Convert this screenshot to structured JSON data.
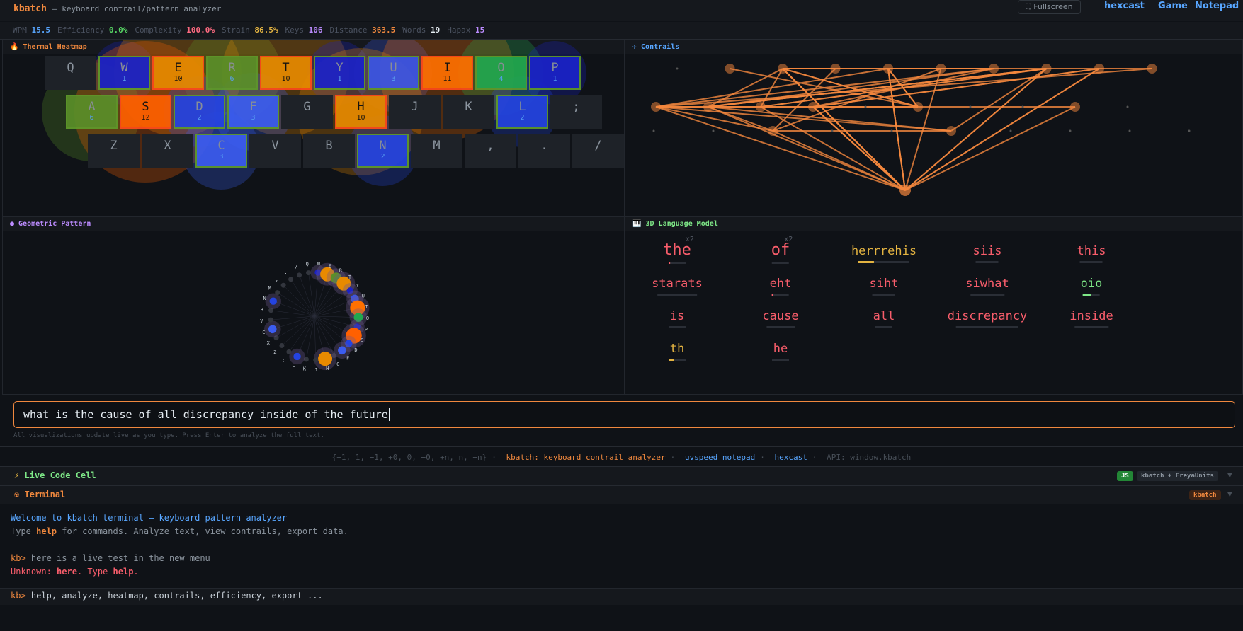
{
  "header": {
    "brand": "kbatch",
    "subtitle": "— keyboard contrail/pattern analyzer",
    "fullscreen": "Fullscreen",
    "links": [
      "hexcast",
      "Game",
      "Notepad"
    ]
  },
  "stats": [
    {
      "label": "WPM",
      "value": "15.5",
      "color": "#58a6ff"
    },
    {
      "label": "Efficiency",
      "value": "0.0%",
      "color": "#56d364"
    },
    {
      "label": "Complexity",
      "value": "100.0%",
      "color": "#ff6b81"
    },
    {
      "label": "Strain",
      "value": "86.5%",
      "color": "#e3b341"
    },
    {
      "label": "Keys",
      "value": "106",
      "color": "#bc8cff"
    },
    {
      "label": "Distance",
      "value": "363.5",
      "color": "#f0883e"
    },
    {
      "label": "Words",
      "value": "19",
      "color": "#e6edf3"
    },
    {
      "label": "Hapax",
      "value": "15",
      "color": "#bc8cff"
    }
  ],
  "panels": {
    "heatmap": "Thermal Heatmap",
    "contrails": "✈ Contrails",
    "geometric": "● Geometric Pattern",
    "language": "3D Language Model"
  },
  "keyboard": [
    [
      {
        "k": "Q"
      },
      {
        "k": "W",
        "c": "1",
        "col": "#1a22c8"
      },
      {
        "k": "E",
        "c": "10",
        "col": "#e88a00"
      },
      {
        "k": "R",
        "c": "6",
        "col": "#5a8f29"
      },
      {
        "k": "T",
        "c": "10",
        "col": "#e88a00"
      },
      {
        "k": "Y",
        "c": "1",
        "col": "#1a22c8"
      },
      {
        "k": "U",
        "c": "3",
        "col": "#3b55e6"
      },
      {
        "k": "I",
        "c": "11",
        "col": "#ff7000"
      },
      {
        "k": "O",
        "c": "4",
        "col": "#22a84f"
      },
      {
        "k": "P",
        "c": "1",
        "col": "#1a22c8"
      }
    ],
    [
      {
        "k": "A",
        "c": "6",
        "col": "#5a8f29"
      },
      {
        "k": "S",
        "c": "12",
        "col": "#ff6000"
      },
      {
        "k": "D",
        "c": "2",
        "col": "#2443e0"
      },
      {
        "k": "F",
        "c": "3",
        "col": "#3b5cf0"
      },
      {
        "k": "G"
      },
      {
        "k": "H",
        "c": "10",
        "col": "#e88a00"
      },
      {
        "k": "J"
      },
      {
        "k": "K"
      },
      {
        "k": "L",
        "c": "2",
        "col": "#2443e0"
      },
      {
        "k": ";"
      }
    ],
    [
      {
        "k": "Z"
      },
      {
        "k": "X"
      },
      {
        "k": "C",
        "c": "3",
        "col": "#3b5cf0"
      },
      {
        "k": "V"
      },
      {
        "k": "B"
      },
      {
        "k": "N",
        "c": "2",
        "col": "#2443e0"
      },
      {
        "k": "M"
      },
      {
        "k": ","
      },
      {
        "k": "."
      },
      {
        "k": "/"
      }
    ]
  ],
  "language_model": [
    {
      "w": "the",
      "color": "#f85d6b",
      "count": "x2",
      "fill": 0.1
    },
    {
      "w": "of",
      "color": "#f85d6b",
      "count": "x2",
      "fill": 0
    },
    {
      "w": "herrrehis",
      "color": "#e3b341",
      "fill": 0.3
    },
    {
      "w": "siis",
      "color": "#f85d6b",
      "fill": 0
    },
    {
      "w": "this",
      "color": "#f85d6b",
      "fill": 0
    },
    {
      "w": "starats",
      "color": "#f85d6b",
      "fill": 0
    },
    {
      "w": "eht",
      "color": "#f85d6b",
      "fill": 0.08
    },
    {
      "w": "siht",
      "color": "#f85d6b",
      "fill": 0
    },
    {
      "w": "siwhat",
      "color": "#f85d6b",
      "fill": 0
    },
    {
      "w": "oio",
      "color": "#7ee787",
      "fill": 0.5
    },
    {
      "w": "is",
      "color": "#f85d6b",
      "fill": 0
    },
    {
      "w": "cause",
      "color": "#f85d6b",
      "fill": 0
    },
    {
      "w": "all",
      "color": "#f85d6b",
      "fill": 0
    },
    {
      "w": "discrepancy",
      "color": "#f85d6b",
      "fill": 0
    },
    {
      "w": "inside",
      "color": "#f85d6b",
      "fill": 0
    },
    {
      "w": "th",
      "color": "#e3b341",
      "fill": 0.3
    },
    {
      "w": "he",
      "color": "#f85d6b",
      "fill": 0
    }
  ],
  "input": {
    "value": "what is the cause of all discrepancy inside of the future",
    "hint": "All visualizations update live as you type. Press Enter to analyze the full text."
  },
  "footer": {
    "ops": "{+1, 1, −1, +0, 0, −0, +n, n, −n}",
    "kbatch": "kbatch: keyboard contrail analyzer",
    "notepad": "uvspeed notepad",
    "hexcast": "hexcast",
    "api": "API: window.kbatch"
  },
  "live_cell": {
    "title": "Live Code Cell",
    "badge_js": "JS",
    "badge_lib": "kbatch + FreyaUnits"
  },
  "terminal": {
    "title": "Terminal",
    "badge": "kbatch",
    "welcome": "Welcome to kbatch terminal — keyboard pattern analyzer",
    "help_pre": "Type ",
    "help_word": "help",
    "help_post": " for commands. Analyze text, view contrails, export data.",
    "prompt": "kb>",
    "cmd": "here is a live test in the new menu",
    "err_pre": "Unknown: ",
    "err_word": "here",
    "err_mid": ". Type ",
    "err_help": "help",
    "err_end": ".",
    "suggest": "help, analyze, heatmap, contrails, efficiency, export ..."
  },
  "colors": {
    "accent": "#f0883e",
    "link": "#58a6ff",
    "bg": "#0f1217"
  }
}
